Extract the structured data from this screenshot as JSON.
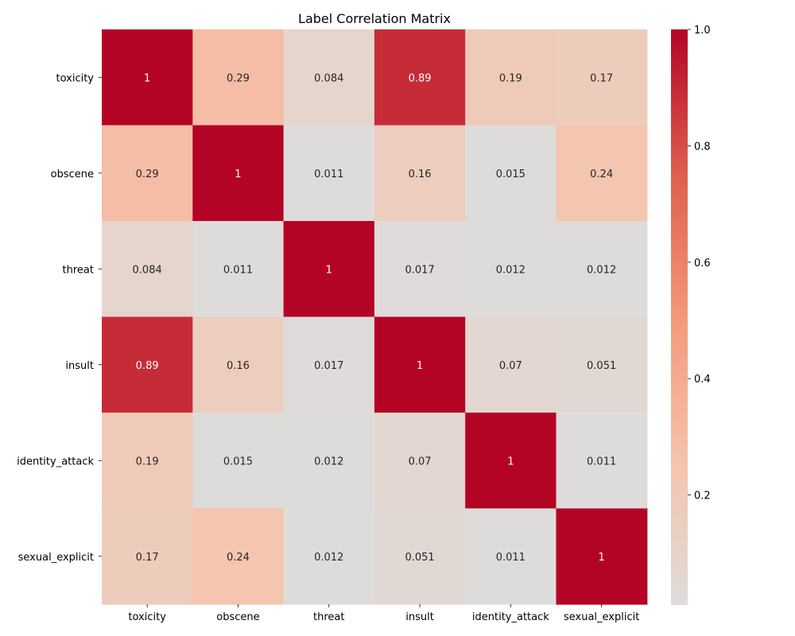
{
  "chart_data": {
    "type": "heatmap",
    "title": "Label Correlation Matrix",
    "xlabel": "",
    "ylabel": "",
    "x_categories": [
      "toxicity",
      "obscene",
      "threat",
      "insult",
      "identity_attack",
      "sexual_explicit"
    ],
    "y_categories": [
      "toxicity",
      "obscene",
      "threat",
      "insult",
      "identity_attack",
      "sexual_explicit"
    ],
    "values": [
      [
        1,
        0.29,
        0.084,
        0.89,
        0.19,
        0.17
      ],
      [
        0.29,
        1,
        0.011,
        0.16,
        0.015,
        0.24
      ],
      [
        0.084,
        0.011,
        1,
        0.017,
        0.012,
        0.012
      ],
      [
        0.89,
        0.16,
        0.017,
        1,
        0.07,
        0.051
      ],
      [
        0.19,
        0.015,
        0.012,
        0.07,
        1,
        0.011
      ],
      [
        0.17,
        0.24,
        0.012,
        0.051,
        0.011,
        1
      ]
    ],
    "value_labels": [
      [
        "1",
        "0.29",
        "0.084",
        "0.89",
        "0.19",
        "0.17"
      ],
      [
        "0.29",
        "1",
        "0.011",
        "0.16",
        "0.015",
        "0.24"
      ],
      [
        "0.084",
        "0.011",
        "1",
        "0.017",
        "0.012",
        "0.012"
      ],
      [
        "0.89",
        "0.16",
        "0.017",
        "1",
        "0.07",
        "0.051"
      ],
      [
        "0.19",
        "0.015",
        "0.012",
        "0.07",
        "1",
        "0.011"
      ],
      [
        "0.17",
        "0.24",
        "0.012",
        "0.051",
        "0.011",
        "1"
      ]
    ],
    "colormap": "coolwarm",
    "colormap_center": 0,
    "colorbar": {
      "range": [
        0.011,
        1.0
      ],
      "ticks": [
        0.2,
        0.4,
        0.6,
        0.8,
        1.0
      ],
      "tick_labels": [
        "0.2",
        "0.4",
        "0.6",
        "0.8",
        "1.0"
      ],
      "position": "right"
    },
    "grid": false
  }
}
